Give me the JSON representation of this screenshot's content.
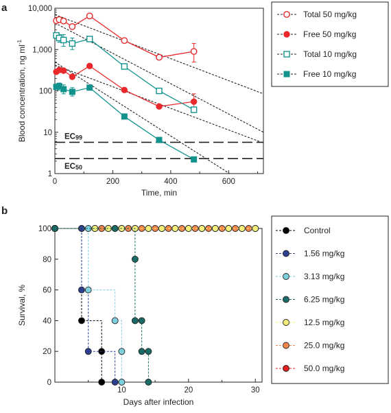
{
  "chart_data": [
    {
      "panel": "a",
      "type": "line",
      "xlabel": "Time, min",
      "ylabel": "Blood concentration, ng ml",
      "ylabel_superscript": "-1",
      "xlim": [
        0,
        720
      ],
      "ylim": [
        1,
        10000
      ],
      "yscale": "log",
      "x_ticks": [
        "0",
        "200",
        "400",
        "600"
      ],
      "x_tick_values": [
        0,
        200,
        400,
        600
      ],
      "y_ticks": [
        "1",
        "10",
        "100",
        "1,000",
        "10,000"
      ],
      "y_tick_values": [
        1,
        10,
        100,
        1000,
        10000
      ],
      "grid": false,
      "legend_position": "right",
      "series": [
        {
          "name": "Total 50 mg/kg",
          "color": "#e8282b",
          "marker": "open-circle",
          "x": [
            5,
            15,
            30,
            60,
            120,
            240,
            360,
            480
          ],
          "y": [
            5000,
            5300,
            4900,
            3600,
            6500,
            1650,
            650,
            900
          ],
          "err_up": [
            0,
            600,
            0,
            0,
            0,
            0,
            0,
            500
          ],
          "err_down": [
            0,
            600,
            0,
            0,
            0,
            0,
            0,
            400
          ]
        },
        {
          "name": "Free 50 mg/kg",
          "color": "#e8282b",
          "marker": "filled-circle",
          "x": [
            5,
            15,
            30,
            60,
            120,
            240,
            360,
            480
          ],
          "y": [
            290,
            320,
            310,
            220,
            400,
            105,
            42,
            55
          ],
          "err_up": [
            0,
            0,
            0,
            0,
            0,
            0,
            0,
            30
          ],
          "err_down": [
            0,
            0,
            0,
            0,
            0,
            0,
            0,
            22
          ]
        },
        {
          "name": "Total 10 mg/kg",
          "color": "#13938e",
          "marker": "open-square",
          "x": [
            5,
            15,
            30,
            60,
            120,
            240,
            360,
            480
          ],
          "y": [
            2200,
            1900,
            1700,
            1400,
            1800,
            390,
            100,
            35
          ],
          "err_up": [
            0,
            400,
            600,
            500,
            0,
            0,
            0,
            0
          ],
          "err_down": [
            0,
            400,
            500,
            400,
            0,
            0,
            0,
            0
          ]
        },
        {
          "name": "Free 10 mg/kg",
          "color": "#13938e",
          "marker": "filled-square",
          "x": [
            5,
            15,
            30,
            60,
            120,
            240,
            360,
            480
          ],
          "y": [
            125,
            130,
            110,
            95,
            120,
            24,
            6.5,
            2.2
          ],
          "err_up": [
            0,
            25,
            30,
            25,
            0,
            0,
            0,
            0
          ],
          "err_down": [
            0,
            25,
            25,
            20,
            0,
            0,
            0,
            0
          ]
        }
      ],
      "fit_lines": [
        {
          "x": [
            0,
            720
          ],
          "y": [
            7000,
            85
          ]
        },
        {
          "x": [
            0,
            720
          ],
          "y": [
            420,
            5.5
          ]
        },
        {
          "x": [
            0,
            720
          ],
          "y": [
            4400,
            10
          ]
        },
        {
          "x": [
            0,
            720
          ],
          "y": [
            500,
            0.3
          ]
        }
      ],
      "annotations": [
        {
          "label": "EC",
          "sub": "99",
          "value": 5.7
        },
        {
          "label": "EC",
          "sub": "50",
          "value": 2.3
        }
      ]
    },
    {
      "panel": "b",
      "type": "line",
      "step": true,
      "xlabel": "Days after infection",
      "ylabel": "Survival,  %",
      "xlim": [
        0,
        31
      ],
      "ylim": [
        0,
        100
      ],
      "x_ticks": [
        "10",
        "20",
        "30"
      ],
      "x_tick_values": [
        10,
        20,
        30
      ],
      "y_ticks": [
        "0",
        "20",
        "40",
        "60",
        "80",
        "100"
      ],
      "y_tick_values": [
        0,
        20,
        40,
        60,
        80,
        100
      ],
      "grid": false,
      "legend_position": "right",
      "series": [
        {
          "name": "Control",
          "color": "#000000",
          "x": [
            0,
            4,
            4,
            7,
            7
          ],
          "y": [
            100,
            100,
            40,
            20,
            0
          ]
        },
        {
          "name": "1.56 mg/kg",
          "color": "#2f3f8f",
          "x": [
            0,
            4,
            4,
            5,
            9
          ],
          "y": [
            100,
            100,
            60,
            20,
            0
          ]
        },
        {
          "name": "3.13 mg/kg",
          "color": "#7fd0de",
          "x": [
            0,
            5,
            5,
            9,
            10,
            10
          ],
          "y": [
            100,
            100,
            60,
            40,
            20,
            0
          ]
        },
        {
          "name": "6.25 mg/kg",
          "color": "#1a6b66",
          "x": [
            0,
            9,
            12,
            12,
            13,
            13,
            14,
            14
          ],
          "y": [
            100,
            100,
            80,
            40,
            40,
            20,
            20,
            0
          ]
        },
        {
          "name": "12.5 mg/kg",
          "color": "#f5ef7a",
          "x": [
            0,
            6,
            8,
            10,
            12,
            14,
            16,
            18,
            20,
            22,
            24,
            26,
            28,
            30
          ],
          "y": [
            100,
            100,
            100,
            100,
            100,
            100,
            100,
            100,
            100,
            100,
            100,
            100,
            100,
            100
          ]
        },
        {
          "name": "25.0 mg/kg",
          "color": "#f4854a",
          "x": [
            0,
            7,
            9,
            11,
            13,
            15,
            17,
            19,
            21,
            23,
            25,
            27,
            29
          ],
          "y": [
            100,
            100,
            100,
            100,
            100,
            100,
            100,
            100,
            100,
            100,
            100,
            100,
            100
          ]
        },
        {
          "name": "50.0 mg/kg",
          "color": "#e02020",
          "x": [
            0,
            6,
            8,
            10,
            12,
            14,
            16,
            18,
            20,
            22,
            24,
            26,
            28,
            30
          ],
          "y": [
            100,
            100,
            100,
            100,
            100,
            100,
            100,
            100,
            100,
            100,
            100,
            100,
            100,
            100
          ]
        }
      ]
    }
  ],
  "labels": {
    "panel_a": "a",
    "panel_b": "b"
  }
}
